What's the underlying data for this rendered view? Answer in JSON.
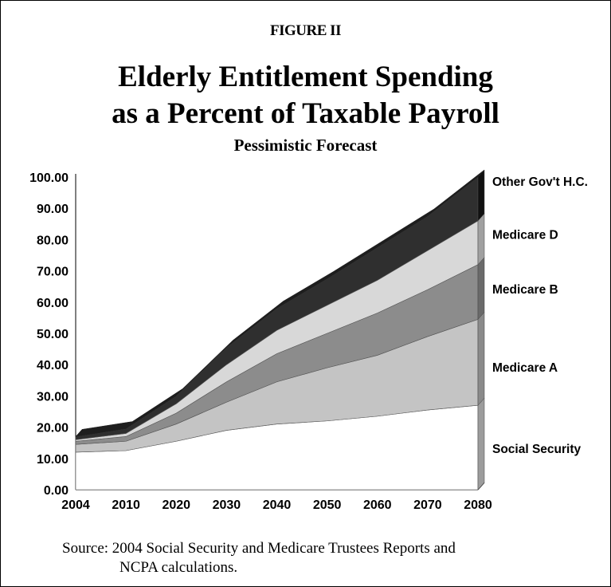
{
  "figure_label": "FIGURE II",
  "title_line1": "Elderly Entitlement Spending",
  "title_line2": "as a Percent of Taxable Payroll",
  "subtitle": "Pessimistic Forecast",
  "source_line1": "Source: 2004 Social Security and Medicare Trustees Reports and",
  "source_line2": "NCPA calculations.",
  "chart_data": {
    "type": "area",
    "stacked": true,
    "three_d": true,
    "categories": [
      "2004",
      "2010",
      "2020",
      "2030",
      "2040",
      "2050",
      "2060",
      "2070",
      "2080"
    ],
    "ylim": [
      0,
      100
    ],
    "yticks": [
      "0.00",
      "10.00",
      "20.00",
      "30.00",
      "40.00",
      "50.00",
      "60.00",
      "70.00",
      "80.00",
      "90.00",
      "100.00"
    ],
    "series": [
      {
        "name": "Social Security",
        "values": [
          12,
          12.5,
          15.5,
          19,
          21,
          22,
          23.5,
          25.5,
          27
        ],
        "color": "#ffffff"
      },
      {
        "name": "Medicare A",
        "values": [
          2.5,
          3,
          5.5,
          9,
          13.5,
          17,
          19.5,
          23.5,
          27.5
        ],
        "color": "#c4c4c4"
      },
      {
        "name": "Medicare B",
        "values": [
          1,
          1.5,
          3.5,
          6.5,
          9,
          11,
          13.5,
          15,
          17.5
        ],
        "color": "#8c8c8c"
      },
      {
        "name": "Medicare D",
        "values": [
          0.5,
          1,
          3,
          5.5,
          7.5,
          9,
          10.5,
          12.5,
          14
        ],
        "color": "#d8d8d8"
      },
      {
        "name": "Other Gov't H.C.",
        "values": [
          1,
          1.5,
          2.5,
          5.5,
          7,
          8.5,
          10.5,
          11,
          14
        ],
        "color": "#2f2f2f"
      }
    ]
  }
}
